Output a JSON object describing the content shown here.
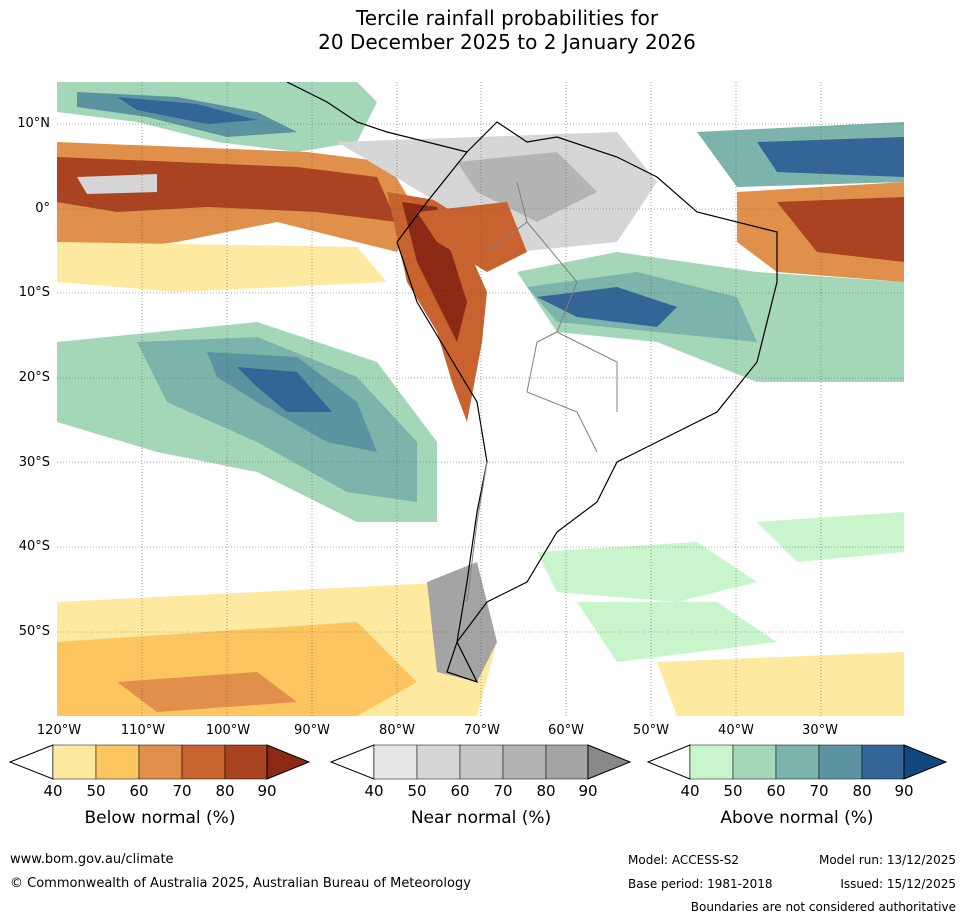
{
  "title": {
    "line1": "Tercile rainfall probabilities for",
    "line2": "20 December 2025 to 2 January 2026"
  },
  "latitude_labels": [
    "10°N",
    "0°",
    "10°S",
    "20°S",
    "30°S",
    "40°S",
    "50°S"
  ],
  "longitude_labels": [
    "120°W",
    "110°W",
    "100°W",
    "90°W",
    "80°W",
    "70°W",
    "60°W",
    "50°W",
    "40°W",
    "30°W"
  ],
  "legends": {
    "below": {
      "title": "Below normal (%)",
      "ticks": [
        "40",
        "50",
        "60",
        "70",
        "80",
        "90"
      ],
      "colors": [
        "#fdeaa0",
        "#fcc560",
        "#e0904a",
        "#c8632f",
        "#a94322",
        "#8b2a14"
      ]
    },
    "near": {
      "title": "Near normal (%)",
      "ticks": [
        "40",
        "50",
        "60",
        "70",
        "80",
        "90"
      ],
      "colors": [
        "#e6e6e6",
        "#d6d6d6",
        "#c6c6c6",
        "#b4b4b4",
        "#a4a4a4",
        "#888888"
      ]
    },
    "above": {
      "title": "Above normal (%)",
      "ticks": [
        "40",
        "50",
        "60",
        "70",
        "80",
        "90"
      ],
      "colors": [
        "#c8f5cc",
        "#a4d6b8",
        "#7cb3ab",
        "#5b93a1",
        "#336696",
        "#12487e"
      ]
    }
  },
  "footer": {
    "website": "www.bom.gov.au/climate",
    "copyright": "© Commonwealth of Australia 2025, Australian Bureau of Meteorology",
    "model": "Model: ACCESS-S2",
    "base_period": "Base period: 1981-2018",
    "model_run": "Model run: 13/12/2025",
    "issued": "Issued: 15/12/2025",
    "disclaimer": "Boundaries are not considered authoritative"
  }
}
